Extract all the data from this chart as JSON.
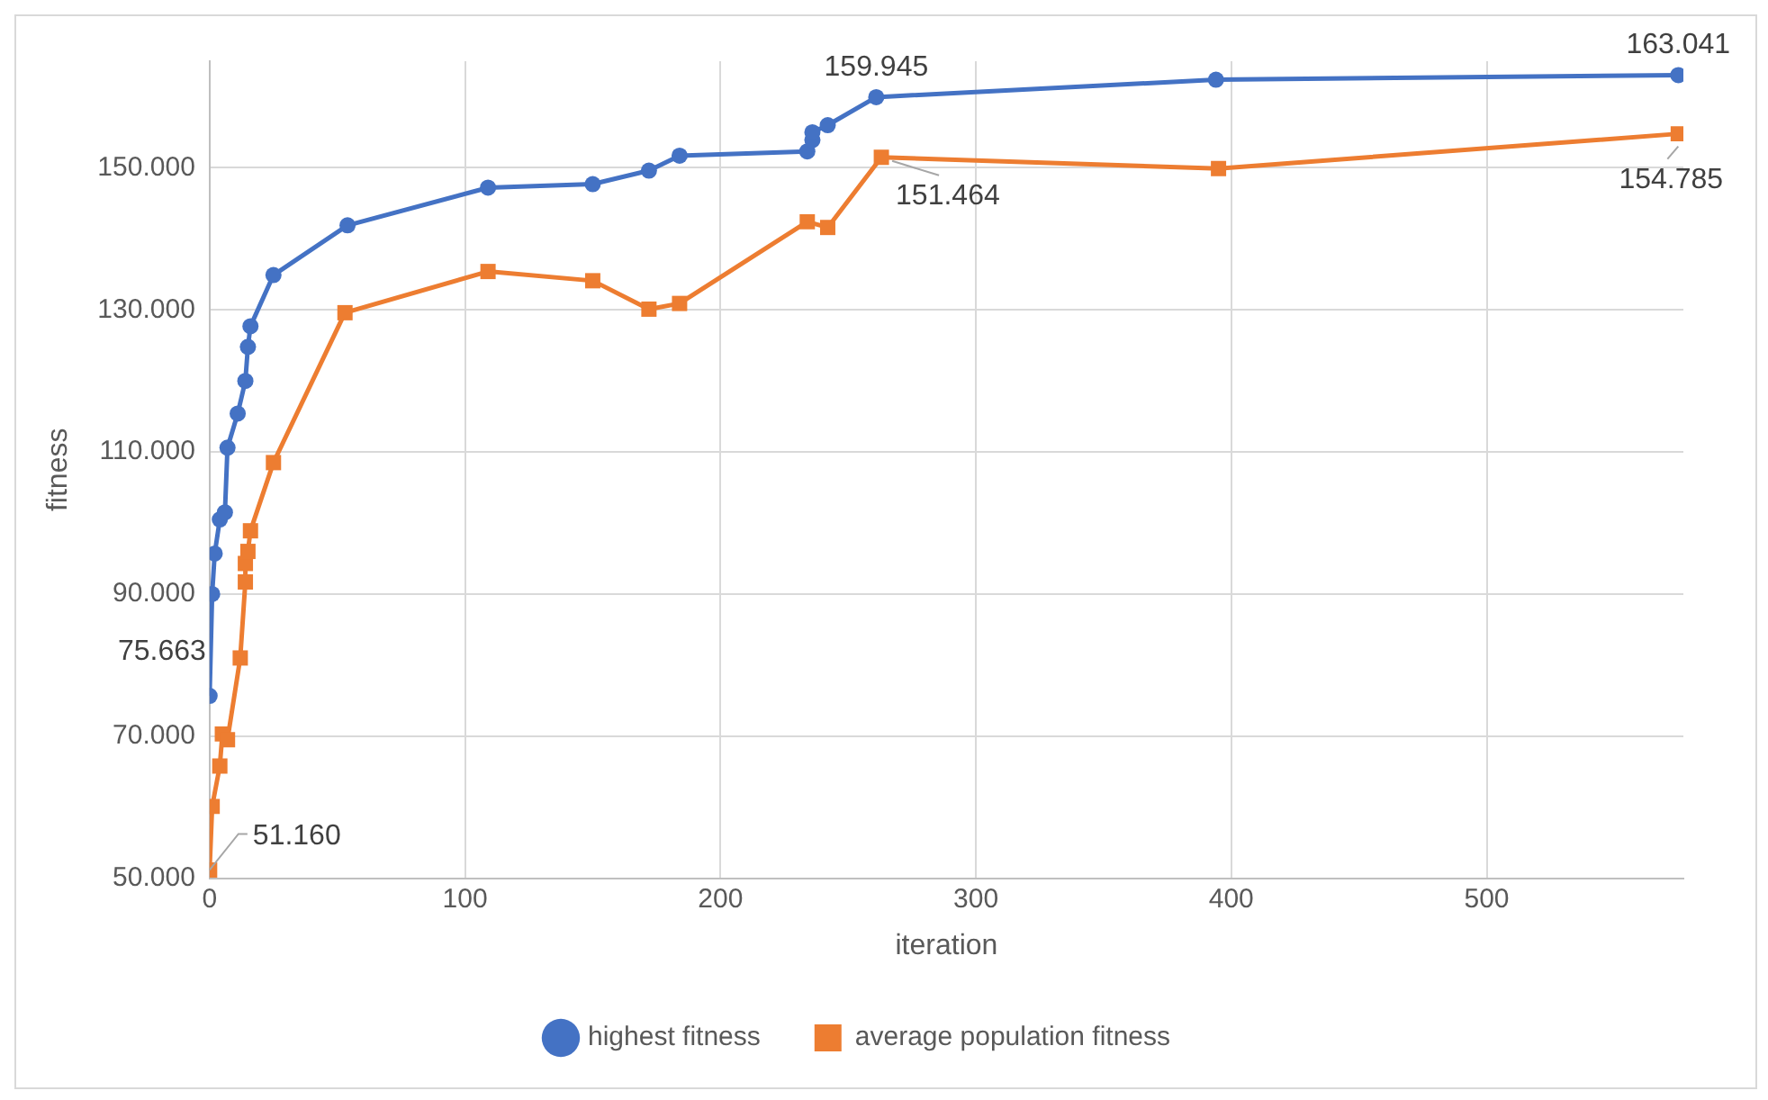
{
  "chart_data": {
    "type": "line",
    "xlabel": "iteration",
    "ylabel": "fitness",
    "xlim": [
      0,
      577
    ],
    "xticks": [
      0,
      100,
      200,
      300,
      400,
      500
    ],
    "ylim": [
      50000,
      165000
    ],
    "yticks": [
      {
        "value": 50000,
        "label": "50.000"
      },
      {
        "value": 70000,
        "label": "70.000"
      },
      {
        "value": 90000,
        "label": "90.000"
      },
      {
        "value": 110000,
        "label": "110.000"
      },
      {
        "value": 130000,
        "label": "130.000"
      },
      {
        "value": 150000,
        "label": "150.000"
      }
    ],
    "grid": true,
    "legend": "bottom",
    "line_style": "solid",
    "series": [
      {
        "name": "highest fitness",
        "color": "#4472c4",
        "marker": "circle",
        "x": [
          0,
          1,
          2,
          4,
          6,
          7,
          11,
          14,
          15,
          16,
          25,
          54,
          109,
          150,
          172,
          184,
          234,
          236,
          236,
          242,
          261,
          394,
          575
        ],
        "values": [
          75663,
          90000,
          95700,
          100500,
          101500,
          110600,
          115400,
          120000,
          124800,
          127700,
          134900,
          141900,
          147200,
          147700,
          149600,
          151700,
          152300,
          153900,
          155000,
          156000,
          159945,
          162400,
          163041
        ],
        "value_labels": [
          "75.663",
          null,
          null,
          null,
          null,
          null,
          null,
          null,
          null,
          null,
          null,
          null,
          null,
          null,
          null,
          null,
          null,
          null,
          null,
          null,
          "159.945",
          null,
          "163.041"
        ]
      },
      {
        "name": "average population fitness",
        "color": "#ed7d31",
        "marker": "square",
        "x": [
          0,
          1,
          4,
          5,
          7,
          12,
          14,
          14,
          15,
          16,
          25,
          53,
          109,
          150,
          172,
          184,
          234,
          242,
          263,
          395,
          575
        ],
        "values": [
          51160,
          60100,
          65800,
          70300,
          69500,
          81000,
          91700,
          94300,
          96000,
          98900,
          108500,
          129600,
          135400,
          134100,
          130100,
          130900,
          142400,
          141600,
          151464,
          149900,
          154785
        ],
        "value_labels": [
          "51.160",
          null,
          null,
          null,
          null,
          null,
          null,
          null,
          null,
          null,
          null,
          null,
          null,
          null,
          null,
          null,
          null,
          null,
          "151.464",
          null,
          "154.785"
        ]
      }
    ]
  }
}
